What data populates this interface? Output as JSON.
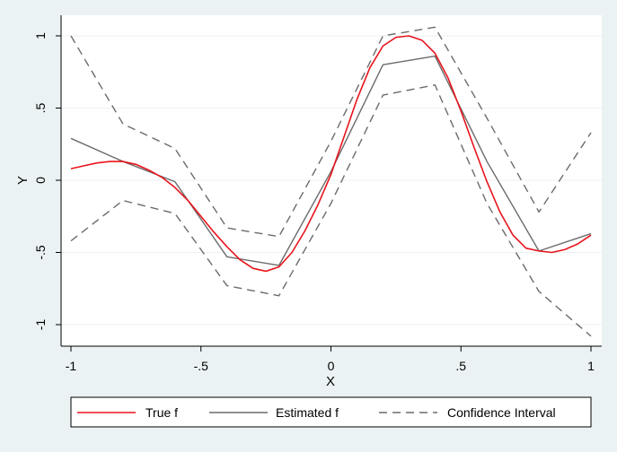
{
  "chart_data": {
    "type": "line",
    "title": "",
    "xlabel": "X",
    "ylabel": "Y",
    "xlim": [
      -1,
      1
    ],
    "ylim": [
      -1.1,
      1.12
    ],
    "xticks": [
      {
        "value": -1,
        "label": "-1"
      },
      {
        "value": -0.5,
        "label": "-.5"
      },
      {
        "value": 0,
        "label": "0"
      },
      {
        "value": 0.5,
        "label": ".5"
      },
      {
        "value": 1,
        "label": "1"
      }
    ],
    "yticks": [
      {
        "value": -1,
        "label": "-1"
      },
      {
        "value": -0.5,
        "label": "-.5"
      },
      {
        "value": 0,
        "label": "0"
      },
      {
        "value": 0.5,
        "label": ".5"
      },
      {
        "value": 1,
        "label": "1"
      }
    ],
    "grid": true,
    "legend_position": "bottom",
    "series": [
      {
        "name": "True f",
        "color": "#e8141c",
        "style": "solid",
        "x": [
          -1,
          -0.95,
          -0.9,
          -0.85,
          -0.8,
          -0.75,
          -0.7,
          -0.65,
          -0.6,
          -0.55,
          -0.5,
          -0.45,
          -0.4,
          -0.35,
          -0.3,
          -0.25,
          -0.2,
          -0.15,
          -0.1,
          -0.05,
          0,
          0.05,
          0.1,
          0.15,
          0.2,
          0.25,
          0.3,
          0.35,
          0.4,
          0.45,
          0.5,
          0.55,
          0.6,
          0.65,
          0.7,
          0.75,
          0.8,
          0.85,
          0.9,
          0.95,
          1
        ],
        "y": [
          0.08,
          0.1,
          0.12,
          0.13,
          0.13,
          0.11,
          0.07,
          0.02,
          -0.05,
          -0.14,
          -0.25,
          -0.36,
          -0.46,
          -0.55,
          -0.61,
          -0.63,
          -0.6,
          -0.5,
          -0.35,
          -0.17,
          0.04,
          0.3,
          0.56,
          0.78,
          0.93,
          0.99,
          1.0,
          0.97,
          0.88,
          0.71,
          0.48,
          0.23,
          -0.01,
          -0.22,
          -0.38,
          -0.47,
          -0.49,
          -0.5,
          -0.48,
          -0.44,
          -0.38
        ]
      },
      {
        "name": "Estimated f",
        "color": "#6b6b6b",
        "style": "solid",
        "x": [
          -1,
          -0.8,
          -0.6,
          -0.4,
          -0.2,
          0,
          0.2,
          0.4,
          0.6,
          0.8,
          1
        ],
        "y": [
          0.29,
          0.13,
          -0.01,
          -0.53,
          -0.59,
          0.06,
          0.8,
          0.86,
          0.13,
          -0.49,
          -0.37
        ]
      },
      {
        "name": "Confidence Interval",
        "color": "#6b6b6b",
        "style": "dashed",
        "x": [
          -1,
          -0.8,
          -0.6,
          -0.4,
          -0.2,
          0,
          0.2,
          0.4,
          0.6,
          0.8,
          1
        ],
        "y": [
          1.0,
          0.39,
          0.22,
          -0.33,
          -0.39,
          0.27,
          1.0,
          1.06,
          0.43,
          -0.22,
          0.33
        ]
      },
      {
        "name": "",
        "color": "#6b6b6b",
        "style": "dashed",
        "x": [
          -1,
          -0.8,
          -0.6,
          -0.4,
          -0.2,
          0,
          0.2,
          0.4,
          0.6,
          0.8,
          1
        ],
        "y": [
          -0.42,
          -0.14,
          -0.23,
          -0.73,
          -0.8,
          -0.16,
          0.59,
          0.66,
          -0.16,
          -0.77,
          -1.08
        ]
      }
    ]
  }
}
